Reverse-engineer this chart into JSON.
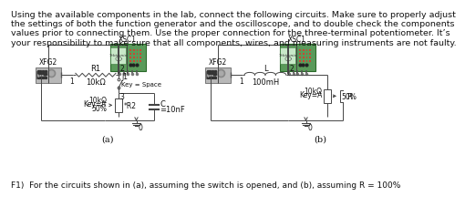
{
  "background_color": "#ffffff",
  "text_line1": "Using the available components in the lab, connect the following circuits. Make sure to properly adjust",
  "text_line2": "the settings of both the function generator and the oscilloscope, and to double check the components",
  "text_line3": "values prior to connecting them. Use the proper connection for the three-terminal potentiometer. It’s",
  "text_line4": "your responsibility to make sure that all components, wires, and measuring instruments are not faulty.",
  "bottom_text": "F1)  For the circuits shown in (a), assuming the switch is opened, and (b), assuming R = 100%",
  "label_a": "(a)",
  "label_b": "(b)",
  "xsc1_label": "XSC1",
  "xfg2_label": "XFG2",
  "r1_label": "R1",
  "r1_val": "10kΩ",
  "j1_label": "J1",
  "j1_key": "Key = Space",
  "c_label": "C",
  "c_val": "=10nF",
  "r2_label": "*R2",
  "l_label": "L",
  "l_val": "100mH",
  "r_label": "R",
  "node1": "1",
  "node2": "2",
  "node3": "3",
  "node0": "0",
  "pot_line1": "10kΩ",
  "pot_line2": "Key=A",
  "pot_line3": "50%",
  "tektronix_color": "#5a9a5a",
  "osc_screen_color": "#c8e8c8",
  "wire_color": "#444444",
  "text_color": "#111111",
  "font_size_body": 6.8,
  "font_size_label": 6.0,
  "font_size_node": 5.5,
  "font_size_bottom": 6.5
}
